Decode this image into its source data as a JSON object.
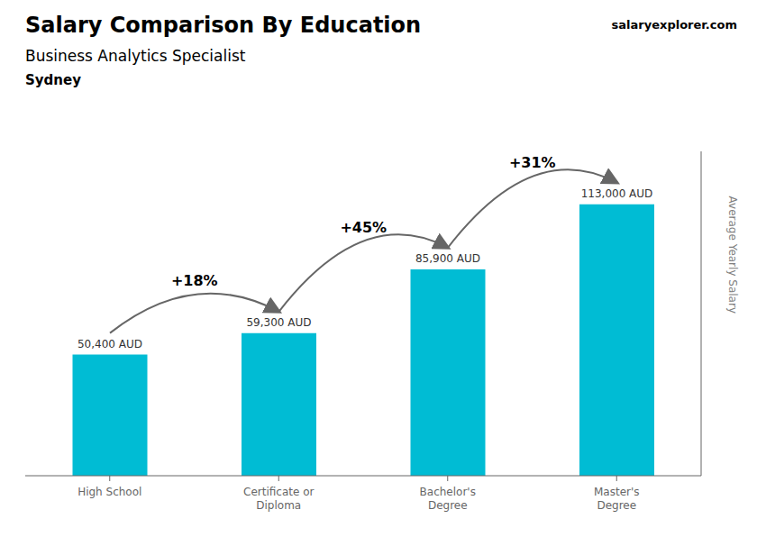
{
  "chart_data": {
    "type": "bar",
    "title": "Salary Comparison By Education",
    "subtitle": "Business Analytics Specialist",
    "location": "Sydney",
    "watermark": "salaryexplorer.com",
    "ylabel": "Average Yearly Salary",
    "categories": [
      "High School",
      "Certificate or\nDiploma",
      "Bachelor's\nDegree",
      "Master's\nDegree"
    ],
    "values": [
      50400,
      59300,
      85900,
      113000
    ],
    "value_labels": [
      "50,400 AUD",
      "59,300 AUD",
      "85,900 AUD",
      "113,000 AUD"
    ],
    "data_labels": true,
    "annotations": [
      "+18%",
      "+45%",
      "+31%"
    ],
    "color": "#00bcd4",
    "ylim": [
      0,
      135000
    ],
    "grid": false,
    "tick_labels": "x"
  }
}
